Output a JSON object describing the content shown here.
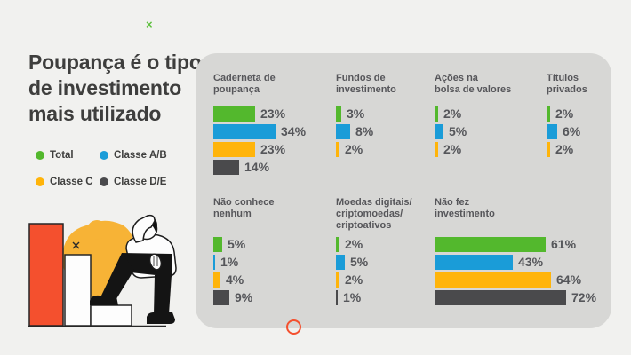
{
  "page": {
    "background": "#F1F1EF",
    "panel_color": "#D7D7D5"
  },
  "decorations": {
    "green_x": "×",
    "accent_orange": "#F4502E"
  },
  "header": {
    "title_lines": [
      "Poupança é o tipo",
      "de investimento",
      "mais utilizado"
    ]
  },
  "legend": {
    "items": [
      {
        "label": "Total",
        "color": "#53B82D"
      },
      {
        "label": "Classe A/B",
        "color": "#1A9CD8"
      },
      {
        "label": "Classe C",
        "color": "#FFB40A"
      },
      {
        "label": "Classe D/E",
        "color": "#4A4A4C"
      }
    ]
  },
  "illustration": {
    "name": "person-confused-looking-at-descending-bar-chart"
  },
  "chart_data": {
    "type": "bar",
    "orientation": "horizontal",
    "unit": "%",
    "value_suffix": "%",
    "legend_position": "left",
    "series": [
      {
        "name": "Total",
        "color": "#53B82D"
      },
      {
        "name": "Classe A/B",
        "color": "#1A9CD8"
      },
      {
        "name": "Classe C",
        "color": "#FFB40A"
      },
      {
        "name": "Classe D/E",
        "color": "#4A4A4C"
      }
    ],
    "groups": [
      {
        "id": "caderneta-de-poupanca",
        "title_lines": [
          "Caderneta de",
          "poupança"
        ],
        "bars": [
          {
            "series": "Total",
            "value": 23
          },
          {
            "series": "Classe A/B",
            "value": 34
          },
          {
            "series": "Classe C",
            "value": 23
          },
          {
            "series": "Classe D/E",
            "value": 14
          }
        ]
      },
      {
        "id": "fundos-de-investimento",
        "title_lines": [
          "Fundos de",
          "investimento"
        ],
        "bars": [
          {
            "series": "Total",
            "value": 3
          },
          {
            "series": "Classe A/B",
            "value": 8
          },
          {
            "series": "Classe C",
            "value": 2
          }
        ]
      },
      {
        "id": "acoes-na-bolsa-de-valores",
        "title_lines": [
          "Ações na",
          "bolsa de valores"
        ],
        "bars": [
          {
            "series": "Total",
            "value": 2
          },
          {
            "series": "Classe A/B",
            "value": 5
          },
          {
            "series": "Classe C",
            "value": 2
          }
        ]
      },
      {
        "id": "titulos-privados",
        "title_lines": [
          "Títulos",
          "privados"
        ],
        "bars": [
          {
            "series": "Total",
            "value": 2
          },
          {
            "series": "Classe A/B",
            "value": 6
          },
          {
            "series": "Classe C",
            "value": 2
          }
        ]
      },
      {
        "id": "nao-conhece-nenhum",
        "title_lines": [
          "Não conhece",
          "nenhum"
        ],
        "bars": [
          {
            "series": "Total",
            "value": 5
          },
          {
            "series": "Classe A/B",
            "value": 1
          },
          {
            "series": "Classe C",
            "value": 4
          },
          {
            "series": "Classe D/E",
            "value": 9
          }
        ]
      },
      {
        "id": "moedas-digitais-criptomoedas-criptoativos",
        "title_lines": [
          "Moedas digitais/",
          "criptomoedas/",
          "criptoativos"
        ],
        "bars": [
          {
            "series": "Total",
            "value": 2
          },
          {
            "series": "Classe A/B",
            "value": 5
          },
          {
            "series": "Classe C",
            "value": 2
          },
          {
            "series": "Classe D/E",
            "value": 1
          }
        ]
      },
      {
        "id": "nao-fez-investimento",
        "title_lines": [
          "Não fez",
          "investimento"
        ],
        "bars": [
          {
            "series": "Total",
            "value": 61
          },
          {
            "series": "Classe A/B",
            "value": 43
          },
          {
            "series": "Classe C",
            "value": 64
          },
          {
            "series": "Classe D/E",
            "value": 72
          }
        ]
      }
    ]
  }
}
